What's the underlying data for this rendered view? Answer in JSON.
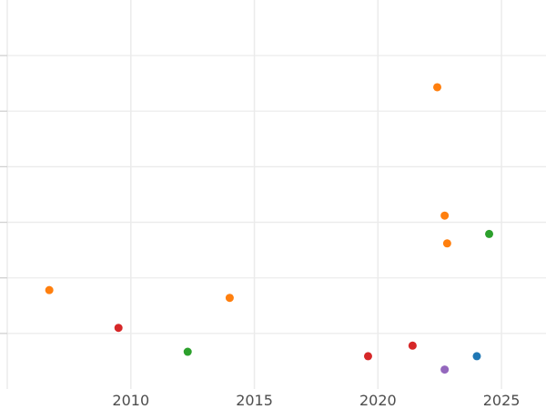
{
  "chart_data": {
    "type": "scatter",
    "title": "",
    "xlabel": "",
    "ylabel": "",
    "xlim": [
      2005,
      2026.8
    ],
    "ylim": [
      0,
      7
    ],
    "grid": true,
    "x_ticks": [
      2010,
      2015,
      2020,
      2025
    ],
    "y_ticks": [
      1,
      2,
      3,
      4,
      5,
      6
    ],
    "x_tick_labels": [
      "2010",
      "2015",
      "2020",
      "2025"
    ],
    "colors": [
      "#1f77b4",
      "#ff7f0e",
      "#2ca02c",
      "#d62728",
      "#9467bd"
    ],
    "series": [
      {
        "color": "#ff7f0e",
        "points": [
          [
            2006.7,
            1.78
          ],
          [
            2014.0,
            1.64
          ],
          [
            2022.4,
            5.43
          ],
          [
            2022.7,
            3.12
          ],
          [
            2022.8,
            2.62
          ]
        ]
      },
      {
        "color": "#d62728",
        "points": [
          [
            2009.5,
            1.1
          ],
          [
            2019.6,
            0.59
          ],
          [
            2021.4,
            0.78
          ]
        ]
      },
      {
        "color": "#2ca02c",
        "points": [
          [
            2012.3,
            0.67
          ],
          [
            2024.5,
            2.79
          ]
        ]
      },
      {
        "color": "#1f77b4",
        "points": [
          [
            2024.0,
            0.59
          ]
        ]
      },
      {
        "color": "#9467bd",
        "points": [
          [
            2022.7,
            0.35
          ]
        ]
      }
    ]
  }
}
